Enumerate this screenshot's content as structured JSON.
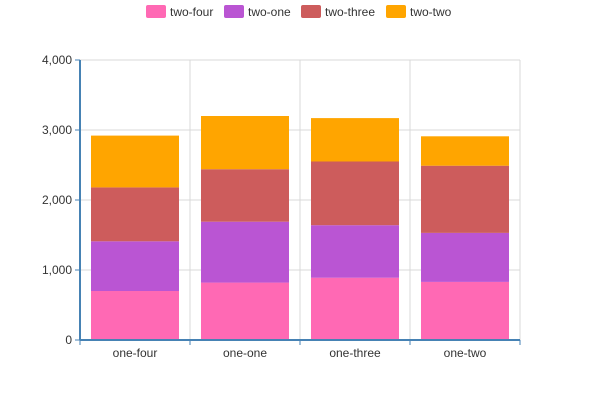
{
  "chart_data": {
    "type": "bar",
    "stacked": true,
    "categories": [
      "one-four",
      "one-one",
      "one-three",
      "one-two"
    ],
    "series": [
      {
        "name": "two-four",
        "color": "#ff69b4",
        "values": [
          700,
          820,
          890,
          830
        ]
      },
      {
        "name": "two-one",
        "color": "#ba55d3",
        "values": [
          710,
          870,
          750,
          700
        ]
      },
      {
        "name": "two-three",
        "color": "#cd5c5c",
        "values": [
          770,
          750,
          910,
          960
        ]
      },
      {
        "name": "two-two",
        "color": "#ffa500",
        "values": [
          740,
          760,
          620,
          420
        ]
      }
    ],
    "ylim": [
      0,
      4000
    ],
    "yticks": [
      0,
      1000,
      2000,
      3000,
      4000
    ],
    "ytick_labels": [
      "0",
      "1,000",
      "2,000",
      "3,000",
      "4,000"
    ],
    "grid": true,
    "legend_position": "top-center",
    "title": "",
    "xlabel": "",
    "ylabel": ""
  }
}
